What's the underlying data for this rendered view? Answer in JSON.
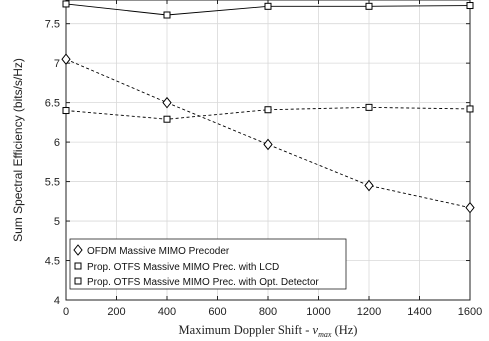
{
  "chart_data": {
    "type": "line",
    "xlabel_main": "Maximum Doppler Shift - ",
    "xlabel_sym": "ν",
    "xlabel_sub": "max",
    "xlabel_unit": " (Hz)",
    "ylabel": "Sum Spectral Efficiency (bits/s/Hz)",
    "xlim": [
      0,
      1600
    ],
    "ylim": [
      4,
      7.8
    ],
    "xticks": [
      "0",
      "200",
      "400",
      "600",
      "800",
      "1000",
      "1200",
      "1400",
      "1600"
    ],
    "yticks": [
      "4",
      "4.5",
      "5",
      "5.5",
      "6",
      "6.5",
      "7",
      "7.5"
    ],
    "grid": true,
    "legend_position": "bottom-left",
    "x": [
      0,
      400,
      800,
      1200,
      1600
    ],
    "series": [
      {
        "name": "OFDM Massive MIMO Precoder",
        "values": [
          7.05,
          6.5,
          5.97,
          5.45,
          5.17
        ],
        "line": "dashed",
        "marker": "diamond",
        "color": "#000000"
      },
      {
        "name": "Prop. OTFS Massive MIMO Prec. with LCD",
        "values": [
          6.4,
          6.29,
          6.41,
          6.44,
          6.42
        ],
        "line": "dashed",
        "marker": "square",
        "color": "#000000"
      },
      {
        "name": "Prop. OTFS Massive MIMO Prec. with Opt. Detector",
        "values": [
          7.75,
          7.61,
          7.72,
          7.72,
          7.73
        ],
        "line": "solid",
        "marker": "square",
        "color": "#000000"
      }
    ]
  }
}
